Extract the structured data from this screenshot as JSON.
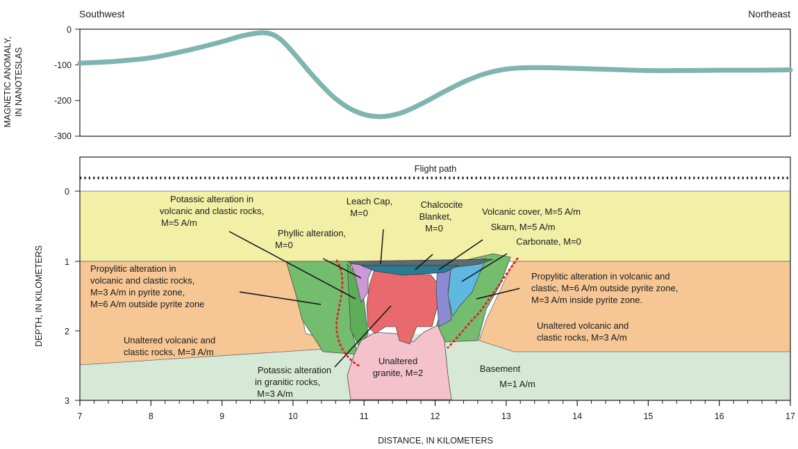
{
  "directions": {
    "left": "Southwest",
    "right": "Northeast"
  },
  "magnetic_panel": {
    "ylabel_line1": "MAGNETIC ANOMALY,",
    "ylabel_line2": "IN NANOTESLAS",
    "yticks": [
      "0",
      "-100",
      "-200",
      "-300"
    ]
  },
  "section_panel": {
    "ylabel": "DEPTH, IN KILOMETERS",
    "yticks": [
      "0",
      "1",
      "2",
      "3"
    ],
    "flight_path": "Flight path",
    "xlabel": "DISTANCE, IN KILOMETERS",
    "xticks": [
      "7",
      "8",
      "9",
      "10",
      "11",
      "12",
      "13",
      "14",
      "15",
      "16",
      "17"
    ]
  },
  "labels": {
    "volcanic_cover": "Volcanic cover, M=5 A/m",
    "potassic_volcanic": [
      "Potassic alteration in",
      "volcanic and clastic rocks,",
      "M=5 A/m"
    ],
    "leach_cap": [
      "Leach Cap,",
      "M=0"
    ],
    "chalcocite": [
      "Chalcocite",
      "Blanket,",
      "M=0"
    ],
    "phyllic": [
      "Phyllic alteration,",
      "M=0"
    ],
    "skarn": "Skarn, M=5 A/m",
    "carbonate": "Carbonate, M=0",
    "propylitic_left": [
      "Propylitic alteration in",
      "volcanic and clastic rocks,",
      "M=3 A/m in pyrite zone,",
      "M=6 A/m outside pyrite zone"
    ],
    "propylitic_right": [
      "Propylitic alteration in volcanic and",
      "clastic, M=6 A/m outside pyrite zone,",
      "M=3 A/m inside pyrite zone."
    ],
    "unaltered_left": [
      "Unaltered volcanic and",
      "clastic rocks, M=3 A/m"
    ],
    "unaltered_right": [
      "Unaltered volcanic and",
      "clastic rocks, M=3 A/m"
    ],
    "potassic_granitic": [
      "Potassic alteration",
      "in granitic rocks,",
      "M=3 A/m"
    ],
    "unaltered_granite": [
      "Unaltered",
      "granite, M=2"
    ],
    "basement": [
      "Basement",
      "M=1 A/m"
    ]
  },
  "colors": {
    "anomaly_curve": "#7fb5b0",
    "volcanic_cover": "#f2f0a6",
    "unaltered_volcanic": "#f6c795",
    "basement": "#d6e9d6",
    "propylitic": "#74bc6e",
    "phyllic": "#cc99d4",
    "potassic": "#e86a6e",
    "unaltered_granite": "#f4c2cc",
    "skarn": "#8a8bd4",
    "carbonate": "#5fb8e0",
    "leach_cap": "#5a6b73",
    "chalcocite": "#2b7b94",
    "pyrite_zone_boundary": "#e0262b"
  },
  "chart_data": {
    "type": "line",
    "x": [
      7.0,
      7.5,
      8.0,
      8.5,
      9.0,
      9.3,
      9.6,
      9.8,
      10.0,
      10.3,
      10.6,
      10.9,
      11.2,
      11.5,
      11.8,
      12.1,
      12.4,
      12.7,
      13.0,
      13.3,
      13.6,
      14.0,
      14.5,
      15.0,
      15.5,
      16.0,
      16.5,
      17.0
    ],
    "y": [
      -95,
      -90,
      -80,
      -60,
      -35,
      -18,
      -10,
      -25,
      -65,
      -135,
      -195,
      -232,
      -245,
      -236,
      -210,
      -178,
      -148,
      -125,
      -112,
      -108,
      -108,
      -110,
      -113,
      -116,
      -116,
      -115,
      -115,
      -114
    ],
    "xlim": [
      7,
      17
    ],
    "ylim": [
      -300,
      0
    ],
    "yticks": [
      0,
      -100,
      -200,
      -300
    ],
    "depth_ylim": [
      0,
      3
    ]
  }
}
